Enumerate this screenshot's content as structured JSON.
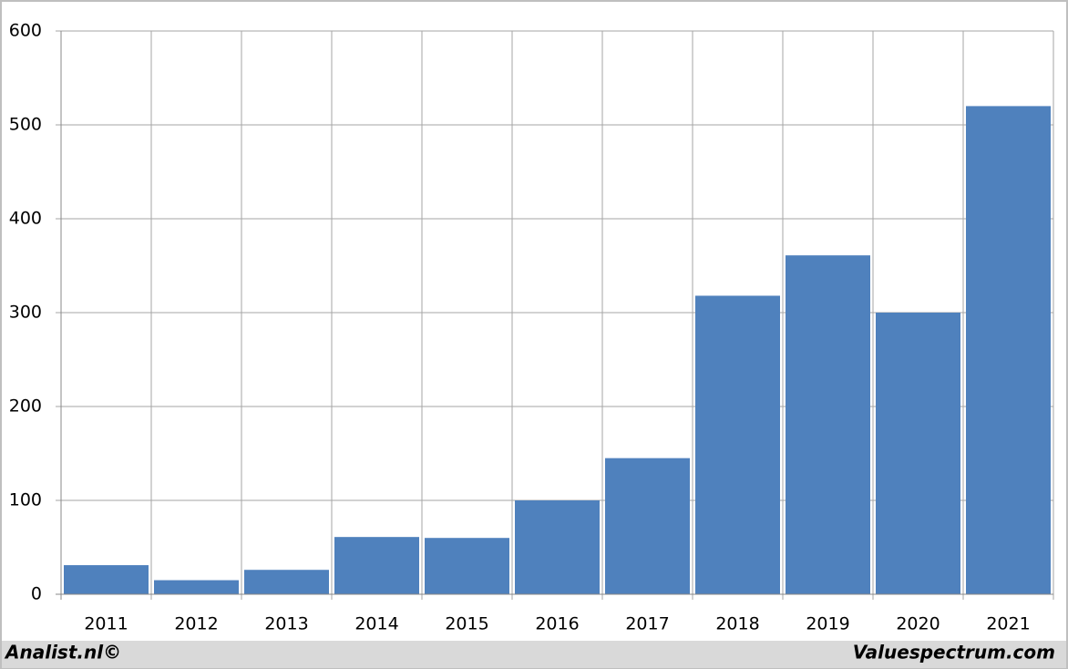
{
  "chart_data": {
    "type": "bar",
    "categories": [
      "2011",
      "2012",
      "2013",
      "2014",
      "2015",
      "2016",
      "2017",
      "2018",
      "2019",
      "2020",
      "2021"
    ],
    "values": [
      31,
      15,
      26,
      61,
      60,
      100,
      145,
      318,
      361,
      300,
      520
    ],
    "color": "#4f81bd",
    "ylim": [
      0,
      600
    ],
    "yticks": [
      0,
      100,
      200,
      300,
      400,
      500,
      600
    ],
    "grid": true
  },
  "footer": {
    "left": "Analist.nl©",
    "right": "Valuespectrum.com"
  }
}
